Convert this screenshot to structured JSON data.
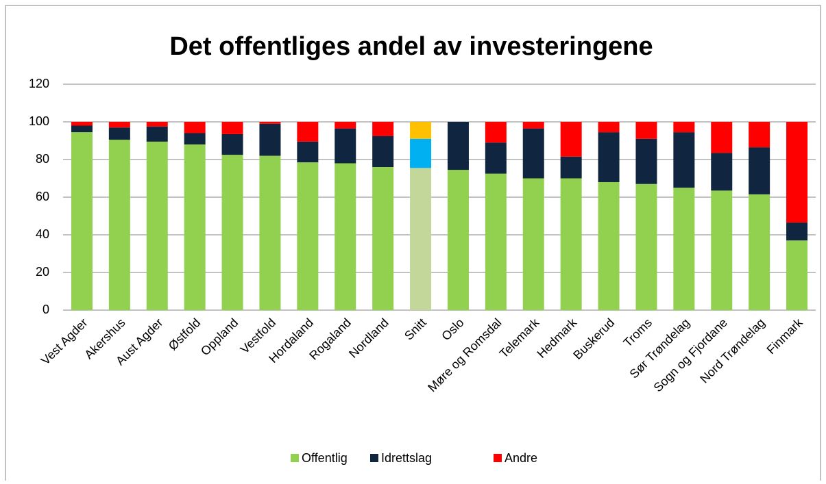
{
  "chart_data": {
    "type": "stacked_bar",
    "title": "Det offentliges andel av investeringene",
    "categories": [
      "Vest Agder",
      "Akershus",
      "Aust Agder",
      "Østfold",
      "Oppland",
      "Vestfold",
      "Hordaland",
      "Rogaland",
      "Nordland",
      "Snitt",
      "Oslo",
      "Møre og Romsdal",
      "Telemark",
      "Hedmark",
      "Buskerud",
      "Troms",
      "Sør Trøndelag",
      "Sogn og Fjordane",
      "Nord Trøndelag",
      "Finmark"
    ],
    "series": [
      {
        "name": "Offentlig",
        "color": "#92d050",
        "highlight_color": "#c4d79b",
        "values": [
          94.5,
          90.5,
          89.5,
          88,
          82.5,
          82,
          78.5,
          78,
          76,
          75.5,
          74.5,
          72.5,
          70,
          70,
          68,
          67,
          65,
          63.5,
          61.5,
          37
        ]
      },
      {
        "name": "Idrettslag",
        "color": "#10253f",
        "highlight_color": "#00b0f0",
        "values": [
          3.5,
          6.5,
          8,
          6,
          11,
          17,
          11,
          18.5,
          16.5,
          15.5,
          25.5,
          16.5,
          26.5,
          11.5,
          26.5,
          24,
          29.5,
          20,
          25,
          9.5
        ]
      },
      {
        "name": "Andre",
        "color": "#ff0000",
        "highlight_color": "#ffc000",
        "values": [
          2,
          3,
          2.5,
          6,
          6.5,
          1,
          10.5,
          3.5,
          7.5,
          9,
          0,
          11,
          3.5,
          18.5,
          5.5,
          9,
          5.5,
          16.5,
          13.5,
          53.5
        ]
      }
    ],
    "highlight_index": 9,
    "ylim": [
      0,
      120
    ],
    "yticks": [
      0,
      20,
      40,
      60,
      80,
      100,
      120
    ],
    "grid": true,
    "legend": "bottom"
  }
}
